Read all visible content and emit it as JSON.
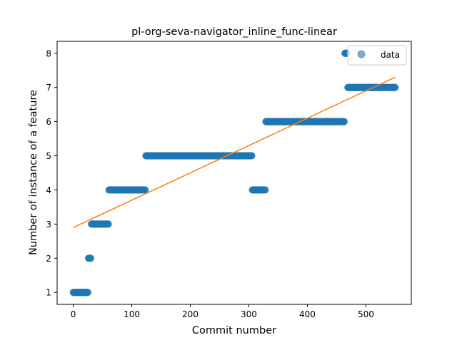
{
  "chart_data": {
    "type": "scatter",
    "title": "pl-org-seva-navigator_inline_func-linear",
    "xlabel": "Commit number",
    "ylabel": "Number of instance of a feature",
    "xlim": [
      -27.5,
      577.5
    ],
    "ylim": [
      0.65,
      8.35
    ],
    "xticks": [
      0,
      100,
      200,
      300,
      400,
      500
    ],
    "yticks": [
      1,
      2,
      3,
      4,
      5,
      6,
      7,
      8
    ],
    "grid": false,
    "legend": {
      "entries": [
        "data"
      ],
      "placement": "upper right"
    },
    "colors": {
      "points": "#1f77b4",
      "fit": "#ff7f0e"
    },
    "series": [
      {
        "name": "data",
        "kind": "points",
        "segments": [
          {
            "x_from": 0,
            "x_to": 25,
            "y": 1
          },
          {
            "x_from": 26,
            "x_to": 30,
            "y": 2
          },
          {
            "x_from": 31,
            "x_to": 60,
            "y": 3
          },
          {
            "x_from": 61,
            "x_to": 123,
            "y": 4
          },
          {
            "x_from": 124,
            "x_to": 305,
            "y": 5
          },
          {
            "x_from": 306,
            "x_to": 328,
            "y": 4
          },
          {
            "x_from": 329,
            "x_to": 463,
            "y": 6
          },
          {
            "x_from": 464,
            "x_to": 468,
            "y": 8
          },
          {
            "x_from": 469,
            "x_to": 550,
            "y": 7
          }
        ]
      },
      {
        "kind": "fit-line",
        "x": [
          0,
          550
        ],
        "y": [
          2.9,
          7.3
        ]
      }
    ]
  }
}
